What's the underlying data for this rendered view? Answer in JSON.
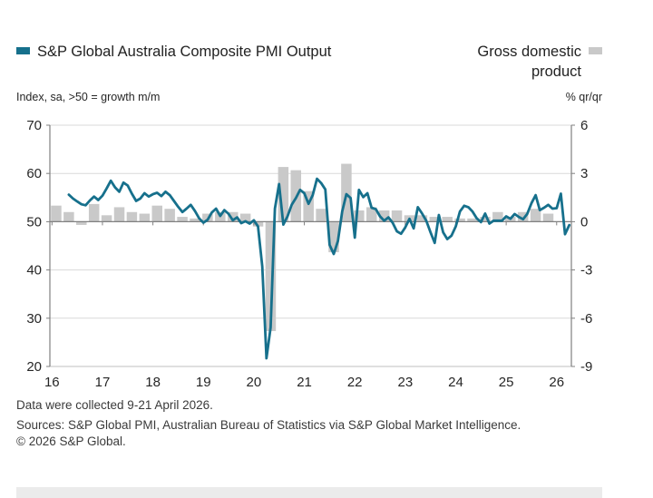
{
  "legend": {
    "pmi_label": "S&P Global Australia Composite PMI Output",
    "gdp_label": "Gross domestic product"
  },
  "axes": {
    "left_subtitle": "Index, sa, >50 = growth m/m",
    "right_subtitle": "% qr/qr"
  },
  "footnotes": {
    "note": "Data were collected 9-21 April 2026.",
    "sources": "Sources: S&P Global PMI, Australian Bureau of Statistics via S&P Global Market Intelligence.",
    "copyright": "© 2026 S&P Global."
  },
  "colors": {
    "pmi_line": "#16708C",
    "gdp_bar": "#C9C9C9",
    "gridline": "#D9D9D9",
    "bottom_gridline": "#BFBFBF",
    "axis_line": "#808080",
    "text": "#262626"
  },
  "chart_data": {
    "type": "combo-line-bar",
    "title": "",
    "left_axis": {
      "subtitle": "Index, sa, >50 = growth m/m",
      "min": 20,
      "max": 70,
      "ticks": [
        70,
        60,
        50,
        40,
        30,
        20
      ]
    },
    "right_axis": {
      "subtitle": "% qr/qr",
      "min": -9,
      "max": 6,
      "ticks": [
        6,
        3,
        0,
        -3,
        -6,
        -9
      ]
    },
    "x_axis": {
      "tick_labels": [
        "16",
        "17",
        "18",
        "19",
        "20",
        "21",
        "22",
        "23",
        "24",
        "25",
        "26"
      ],
      "tick_years": [
        2016,
        2017,
        2018,
        2019,
        2020,
        2021,
        2022,
        2023,
        2024,
        2025,
        2026
      ],
      "total_months": 124
    },
    "series": [
      {
        "name": "S&P Global Australia Composite PMI Output",
        "type": "line",
        "axis": "left",
        "color": "#16708C",
        "frequency": "monthly",
        "start": "2016-05",
        "end": "2026-04",
        "start_offset_months": 4,
        "values": [
          55.6,
          54.8,
          54.2,
          53.6,
          53.4,
          54.4,
          55.2,
          54.5,
          55.4,
          56.9,
          58.5,
          57.1,
          56.2,
          58.1,
          57.5,
          55.8,
          54.3,
          54.8,
          55.9,
          55.2,
          55.7,
          56.0,
          55.3,
          56.2,
          55.5,
          54.3,
          53.1,
          52.0,
          52.7,
          53.5,
          52.2,
          50.7,
          49.8,
          50.4,
          51.9,
          52.7,
          51.2,
          52.4,
          51.6,
          50.3,
          50.9,
          49.7,
          50.1,
          49.6,
          50.3,
          49.0,
          40.7,
          21.7,
          28.1,
          52.7,
          57.8,
          49.4,
          51.1,
          53.5,
          54.9,
          56.6,
          55.9,
          53.7,
          55.5,
          58.9,
          58.0,
          56.7,
          45.2,
          43.3,
          46.0,
          52.1,
          55.7,
          54.9,
          46.7,
          56.6,
          55.1,
          55.9,
          52.9,
          52.6,
          51.1,
          50.2,
          50.9,
          49.8,
          48.0,
          47.5,
          48.8,
          50.6,
          48.6,
          53.0,
          51.7,
          50.2,
          47.8,
          45.6,
          51.4,
          47.8,
          46.4,
          47.1,
          49.0,
          52.1,
          53.3,
          53.0,
          52.1,
          50.7,
          49.9,
          51.7,
          49.6,
          50.2,
          50.2,
          50.2,
          51.1,
          50.6,
          51.6,
          51.0,
          50.5,
          51.6,
          53.8,
          55.5,
          52.4,
          52.9,
          53.5,
          52.7,
          52.8,
          55.8,
          47.4,
          49.3
        ]
      },
      {
        "name": "Gross domestic product",
        "type": "bar",
        "axis": "right",
        "color": "#C9C9C9",
        "frequency": "quarterly",
        "start": "2016-Q1",
        "end": "2025-Q4",
        "values": [
          1.0,
          0.6,
          -0.2,
          1.1,
          0.4,
          0.9,
          0.6,
          0.5,
          1.0,
          0.8,
          0.3,
          0.2,
          0.5,
          0.6,
          0.6,
          0.5,
          -0.3,
          -6.8,
          3.4,
          3.2,
          1.9,
          0.8,
          -1.9,
          3.6,
          0.7,
          0.9,
          0.7,
          0.7,
          0.4,
          0.4,
          0.3,
          0.3,
          0.2,
          0.2,
          0.3,
          0.6,
          0.3,
          0.6,
          0.8,
          0.5
        ]
      }
    ],
    "grid": "horizontal",
    "legend_position": "top"
  }
}
